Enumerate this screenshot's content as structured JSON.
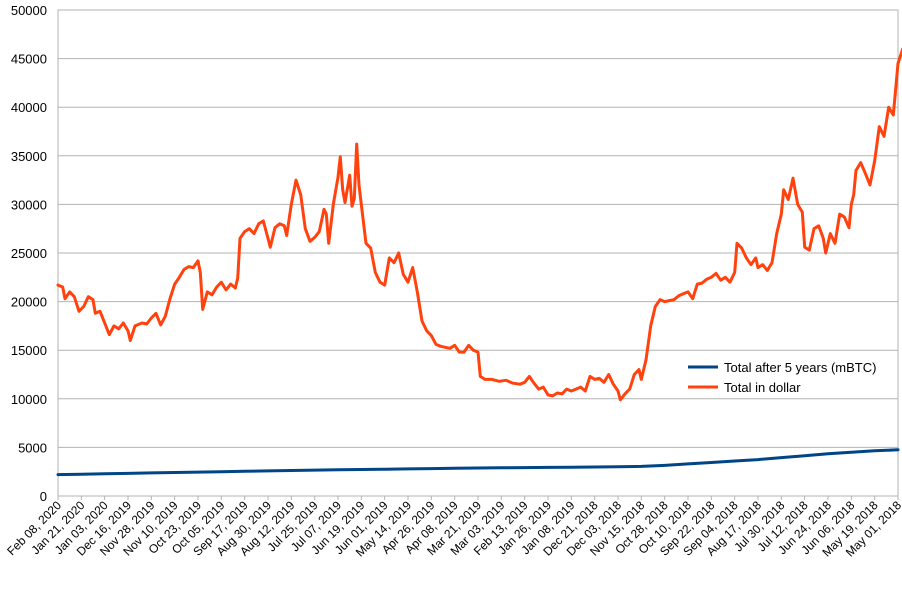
{
  "chart_data": {
    "type": "line",
    "title": "",
    "xlabel": "",
    "ylabel": "",
    "ylim": [
      0,
      50000
    ],
    "y_ticks": [
      0,
      5000,
      10000,
      15000,
      20000,
      25000,
      30000,
      35000,
      40000,
      45000,
      50000
    ],
    "grid": "horizontal",
    "legend_position": "right",
    "x_ticks": [
      "Feb 08, 2020",
      "Jan 21, 2020",
      "Jan 03, 2020",
      "Dec 16, 2019",
      "Nov 28, 2019",
      "Nov 10, 2019",
      "Oct 23, 2019",
      "Oct 05, 2019",
      "Sep 17, 2019",
      "Aug 30, 2019",
      "Aug 12, 2019",
      "Jul 25, 2019",
      "Jul 07, 2019",
      "Jun 19, 2019",
      "Jun 01, 2019",
      "May 14, 2019",
      "Apr 26, 2019",
      "Apr 08, 2019",
      "Mar 21, 2019",
      "Mar 03, 2019",
      "Feb 13, 2019",
      "Jan 26, 2019",
      "Jan 08, 2019",
      "Dec 21, 2018",
      "Dec 03, 2018",
      "Nov 15, 2018",
      "Oct 28, 2018",
      "Oct 10, 2018",
      "Sep 22, 2018",
      "Sep 04, 2018",
      "Aug 17, 2018",
      "Jul 30, 2018",
      "Jul 12, 2018",
      "Jun 24, 2018",
      "Jun 06, 2018",
      "May 19, 2018",
      "May 01, 2018"
    ],
    "series": [
      {
        "name": "Total after 5 years (mBTC)",
        "color": "#004586",
        "points": [
          [
            0,
            2200
          ],
          [
            1,
            2230
          ],
          [
            2,
            2280
          ],
          [
            3,
            2330
          ],
          [
            4,
            2380
          ],
          [
            5,
            2420
          ],
          [
            6,
            2460
          ],
          [
            7,
            2500
          ],
          [
            8,
            2540
          ],
          [
            9,
            2580
          ],
          [
            10,
            2620
          ],
          [
            11,
            2660
          ],
          [
            12,
            2700
          ],
          [
            13,
            2730
          ],
          [
            14,
            2760
          ],
          [
            15,
            2790
          ],
          [
            16,
            2820
          ],
          [
            17,
            2850
          ],
          [
            18,
            2880
          ],
          [
            19,
            2900
          ],
          [
            20,
            2920
          ],
          [
            21,
            2940
          ],
          [
            22,
            2960
          ],
          [
            23,
            2980
          ],
          [
            24,
            3000
          ],
          [
            25,
            3050
          ],
          [
            26,
            3150
          ],
          [
            27,
            3300
          ],
          [
            28,
            3450
          ],
          [
            29,
            3600
          ],
          [
            30,
            3750
          ],
          [
            31,
            3950
          ],
          [
            32,
            4150
          ],
          [
            33,
            4350
          ],
          [
            34,
            4500
          ],
          [
            35,
            4650
          ],
          [
            36,
            4750
          ]
        ]
      },
      {
        "name": "Total in dollar",
        "color": "#ff420e",
        "points": [
          [
            0,
            21700
          ],
          [
            0.2,
            21500
          ],
          [
            0.3,
            20300
          ],
          [
            0.5,
            21000
          ],
          [
            0.7,
            20500
          ],
          [
            0.9,
            19000
          ],
          [
            1.1,
            19500
          ],
          [
            1.3,
            20500
          ],
          [
            1.5,
            20200
          ],
          [
            1.6,
            18800
          ],
          [
            1.8,
            19000
          ],
          [
            2.0,
            17800
          ],
          [
            2.2,
            16600
          ],
          [
            2.4,
            17500
          ],
          [
            2.6,
            17200
          ],
          [
            2.8,
            17800
          ],
          [
            3.0,
            17000
          ],
          [
            3.1,
            16000
          ],
          [
            3.3,
            17500
          ],
          [
            3.6,
            17800
          ],
          [
            3.8,
            17700
          ],
          [
            4.0,
            18300
          ],
          [
            4.2,
            18800
          ],
          [
            4.4,
            17600
          ],
          [
            4.6,
            18500
          ],
          [
            4.8,
            20300
          ],
          [
            5.0,
            21800
          ],
          [
            5.2,
            22500
          ],
          [
            5.4,
            23300
          ],
          [
            5.6,
            23600
          ],
          [
            5.8,
            23500
          ],
          [
            6.0,
            24200
          ],
          [
            6.1,
            23000
          ],
          [
            6.2,
            19200
          ],
          [
            6.4,
            21000
          ],
          [
            6.6,
            20700
          ],
          [
            6.8,
            21500
          ],
          [
            7.0,
            22000
          ],
          [
            7.2,
            21200
          ],
          [
            7.4,
            21800
          ],
          [
            7.6,
            21400
          ],
          [
            7.7,
            22400
          ],
          [
            7.8,
            26500
          ],
          [
            8.0,
            27200
          ],
          [
            8.2,
            27500
          ],
          [
            8.4,
            27000
          ],
          [
            8.6,
            28000
          ],
          [
            8.8,
            28300
          ],
          [
            9.0,
            26500
          ],
          [
            9.1,
            25600
          ],
          [
            9.3,
            27600
          ],
          [
            9.5,
            28000
          ],
          [
            9.7,
            27800
          ],
          [
            9.8,
            26800
          ],
          [
            10.0,
            30000
          ],
          [
            10.2,
            32500
          ],
          [
            10.4,
            31000
          ],
          [
            10.6,
            27500
          ],
          [
            10.8,
            26200
          ],
          [
            11.0,
            26600
          ],
          [
            11.2,
            27200
          ],
          [
            11.4,
            29500
          ],
          [
            11.5,
            29000
          ],
          [
            11.6,
            26000
          ],
          [
            11.8,
            30000
          ],
          [
            12.0,
            32800
          ],
          [
            12.1,
            34900
          ],
          [
            12.2,
            31500
          ],
          [
            12.3,
            30200
          ],
          [
            12.5,
            33000
          ],
          [
            12.6,
            29800
          ],
          [
            12.7,
            30600
          ],
          [
            12.8,
            36200
          ],
          [
            12.9,
            32000
          ],
          [
            13.0,
            30000
          ],
          [
            13.2,
            26000
          ],
          [
            13.4,
            25500
          ],
          [
            13.6,
            23000
          ],
          [
            13.8,
            22000
          ],
          [
            14.0,
            21700
          ],
          [
            14.2,
            24500
          ],
          [
            14.4,
            24000
          ],
          [
            14.6,
            25000
          ],
          [
            14.8,
            22800
          ],
          [
            15.0,
            22000
          ],
          [
            15.2,
            23500
          ],
          [
            15.4,
            21000
          ],
          [
            15.6,
            18000
          ],
          [
            15.8,
            17000
          ],
          [
            16.0,
            16500
          ],
          [
            16.2,
            15600
          ],
          [
            16.4,
            15400
          ],
          [
            16.6,
            15300
          ],
          [
            16.8,
            15200
          ],
          [
            17.0,
            15500
          ],
          [
            17.2,
            14800
          ],
          [
            17.4,
            14800
          ],
          [
            17.6,
            15500
          ],
          [
            17.8,
            15000
          ],
          [
            18.0,
            14800
          ],
          [
            18.1,
            12300
          ],
          [
            18.3,
            12000
          ],
          [
            18.6,
            12000
          ],
          [
            18.9,
            11800
          ],
          [
            19.2,
            11900
          ],
          [
            19.5,
            11600
          ],
          [
            19.8,
            11500
          ],
          [
            20.0,
            11700
          ],
          [
            20.2,
            12300
          ],
          [
            20.4,
            11600
          ],
          [
            20.6,
            11000
          ],
          [
            20.8,
            11200
          ],
          [
            21.0,
            10400
          ],
          [
            21.2,
            10300
          ],
          [
            21.4,
            10600
          ],
          [
            21.6,
            10500
          ],
          [
            21.8,
            11000
          ],
          [
            22.0,
            10800
          ],
          [
            22.2,
            11000
          ],
          [
            22.4,
            11200
          ],
          [
            22.6,
            10800
          ],
          [
            22.8,
            12300
          ],
          [
            23.0,
            12000
          ],
          [
            23.2,
            12100
          ],
          [
            23.4,
            11700
          ],
          [
            23.6,
            12500
          ],
          [
            23.8,
            11500
          ],
          [
            24.0,
            10800
          ],
          [
            24.1,
            9900
          ],
          [
            24.3,
            10500
          ],
          [
            24.5,
            11000
          ],
          [
            24.7,
            12500
          ],
          [
            24.9,
            13000
          ],
          [
            25.0,
            12000
          ],
          [
            25.2,
            14000
          ],
          [
            25.4,
            17500
          ],
          [
            25.6,
            19500
          ],
          [
            25.8,
            20200
          ],
          [
            26.0,
            20000
          ],
          [
            26.2,
            20100
          ],
          [
            26.4,
            20200
          ],
          [
            26.6,
            20600
          ],
          [
            26.8,
            20800
          ],
          [
            27.0,
            21000
          ],
          [
            27.2,
            20300
          ],
          [
            27.4,
            21800
          ],
          [
            27.6,
            21900
          ],
          [
            27.8,
            22300
          ],
          [
            28.0,
            22500
          ],
          [
            28.2,
            22900
          ],
          [
            28.4,
            22200
          ],
          [
            28.6,
            22500
          ],
          [
            28.8,
            22000
          ],
          [
            29.0,
            23000
          ],
          [
            29.1,
            26000
          ],
          [
            29.3,
            25500
          ],
          [
            29.5,
            24500
          ],
          [
            29.7,
            23800
          ],
          [
            29.9,
            24500
          ],
          [
            30.0,
            23500
          ],
          [
            30.2,
            23800
          ],
          [
            30.4,
            23200
          ],
          [
            30.6,
            24000
          ],
          [
            30.8,
            27000
          ],
          [
            31.0,
            29000
          ],
          [
            31.1,
            31500
          ],
          [
            31.3,
            30500
          ],
          [
            31.5,
            32700
          ],
          [
            31.7,
            30000
          ],
          [
            31.9,
            29200
          ],
          [
            32.0,
            25600
          ],
          [
            32.2,
            25300
          ],
          [
            32.4,
            27500
          ],
          [
            32.6,
            27800
          ],
          [
            32.8,
            26500
          ],
          [
            32.9,
            25000
          ],
          [
            33.1,
            27000
          ],
          [
            33.3,
            26000
          ],
          [
            33.5,
            29000
          ],
          [
            33.7,
            28700
          ],
          [
            33.9,
            27600
          ],
          [
            34.0,
            30000
          ],
          [
            34.1,
            31000
          ],
          [
            34.2,
            33500
          ],
          [
            34.4,
            34300
          ],
          [
            34.6,
            33200
          ],
          [
            34.8,
            32000
          ],
          [
            35.0,
            34500
          ],
          [
            35.2,
            38000
          ],
          [
            35.4,
            37000
          ],
          [
            35.6,
            40000
          ],
          [
            35.8,
            39200
          ],
          [
            36.0,
            44500
          ],
          [
            36.2,
            46000
          ],
          [
            36.4,
            43500
          ],
          [
            36.5,
            44800
          ],
          [
            36.6,
            42500
          ],
          [
            36.7,
            44000
          ],
          [
            36.8,
            43500
          ]
        ]
      }
    ]
  }
}
